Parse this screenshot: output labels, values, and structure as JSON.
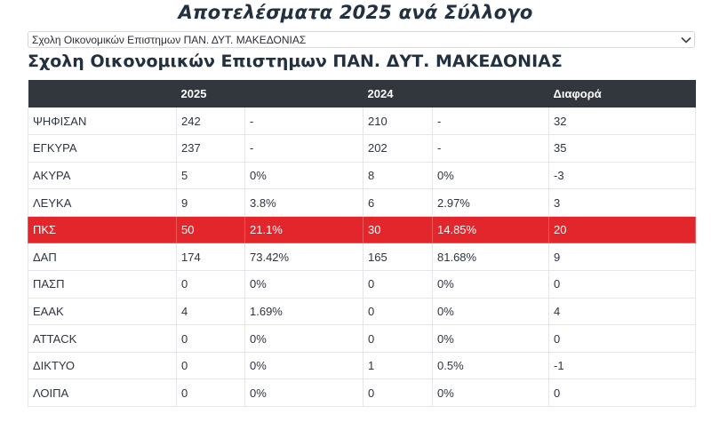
{
  "header": {
    "title": "Αποτελέσματα 2025 ανά Σύλλογο"
  },
  "selector": {
    "selected": "Σχολη Οικονομικών Επιστημων ΠΑΝ. ΔΥΤ. ΜΑΚΕΔΟΝΙΑΣ",
    "icon": "chevron-down-icon"
  },
  "section": {
    "title": "Σχολη Οικονομικών Επιστημων ΠΑΝ. ΔΥΤ. ΜΑΚΕΔΟΝΙΑΣ"
  },
  "table": {
    "columns": [
      "",
      "2025",
      "",
      "2024",
      "",
      "Διαφορά"
    ],
    "rows": [
      [
        "ΨΗΦΙΣΑΝ",
        "242",
        "-",
        "210",
        "-",
        "32"
      ],
      [
        "ΕΓΚΥΡΑ",
        "237",
        "-",
        "202",
        "-",
        "35"
      ],
      [
        "ΑΚΥΡΑ",
        "5",
        "0%",
        "8",
        "0%",
        "-3"
      ],
      [
        "ΛΕΥΚΑ",
        "9",
        "3.8%",
        "6",
        "2.97%",
        "3"
      ],
      [
        "ΠΚΣ",
        "50",
        "21.1%",
        "30",
        "14.85%",
        "20"
      ],
      [
        "ΔΑΠ",
        "174",
        "73.42%",
        "165",
        "81.68%",
        "9"
      ],
      [
        "ΠΑΣΠ",
        "0",
        "0%",
        "0",
        "0%",
        "0"
      ],
      [
        "ΕΑΑΚ",
        "4",
        "1.69%",
        "0",
        "0%",
        "4"
      ],
      [
        "ATTACK",
        "0",
        "0%",
        "0",
        "0%",
        "0"
      ],
      [
        "ΔΙΚΤΥΟ",
        "0",
        "0%",
        "1",
        "0.5%",
        "-1"
      ],
      [
        "ΛΟΙΠΑ",
        "0",
        "0%",
        "0",
        "0%",
        "0"
      ]
    ],
    "highlight_color": "#e3262b",
    "header_color": "#32373d"
  }
}
